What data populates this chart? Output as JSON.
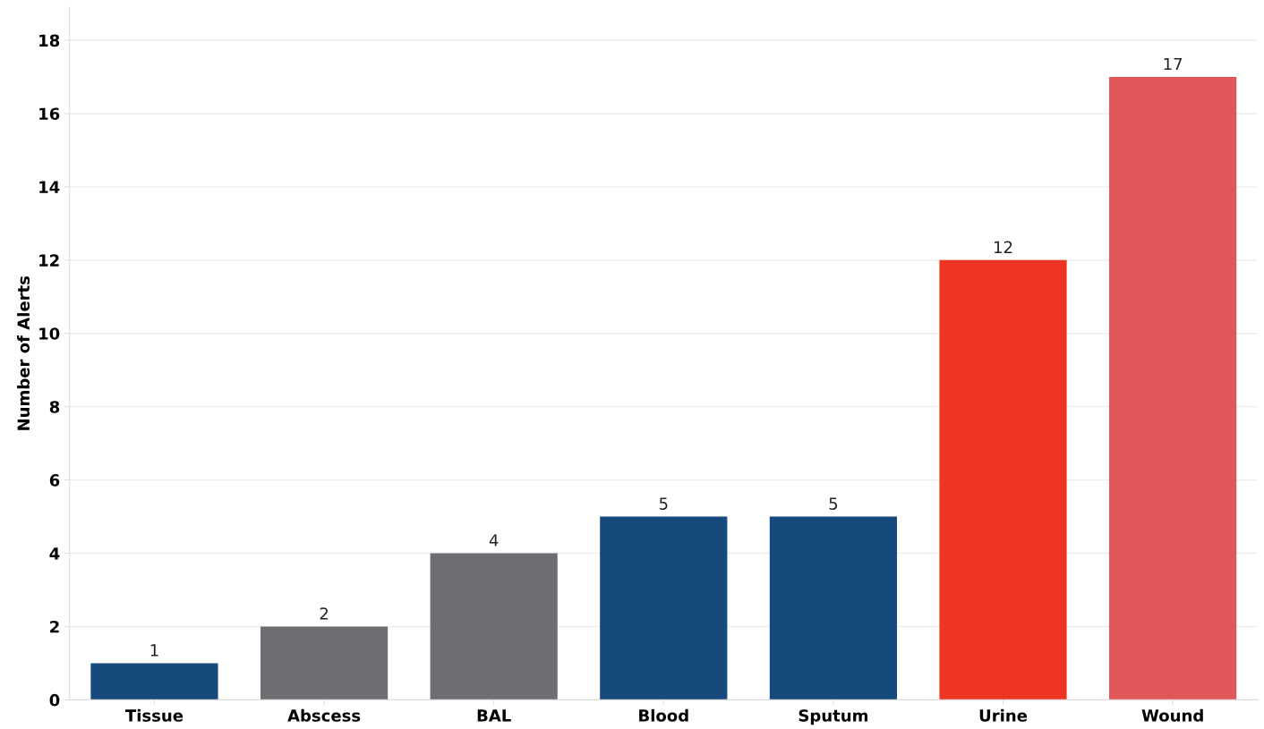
{
  "chart_data": {
    "type": "bar",
    "ylabel": "Number of Alerts",
    "categories": [
      "Tissue",
      "Abscess",
      "BAL",
      "Blood",
      "Sputum",
      "Urine",
      "Wound"
    ],
    "values": [
      1,
      2,
      4,
      5,
      5,
      12,
      17
    ],
    "colors": [
      "#174a7c",
      "#6e6e72",
      "#6e6e72",
      "#174a7c",
      "#174a7c",
      "#ee3524",
      "#e0575a"
    ],
    "ylim": [
      0,
      18.9
    ],
    "yticks": [
      0,
      2,
      4,
      6,
      8,
      10,
      12,
      14,
      16,
      18
    ],
    "grid": "y",
    "data_labels": true
  }
}
